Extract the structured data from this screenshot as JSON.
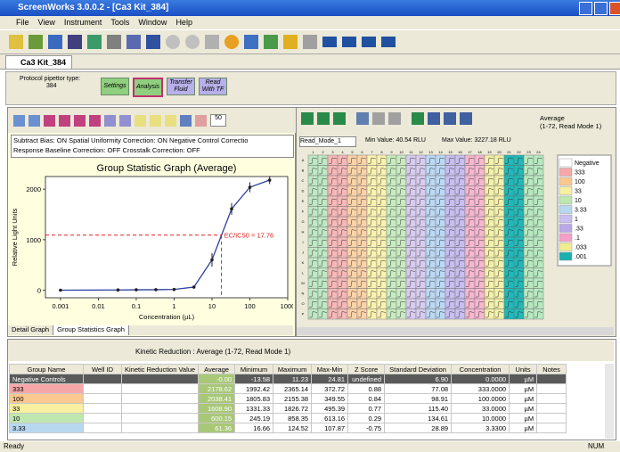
{
  "window": {
    "title": "ScreenWorks 3.0.0.2 - [Ca3 Kit_384]"
  },
  "menu": [
    "File",
    "View",
    "Instrument",
    "Tools",
    "Window",
    "Help"
  ],
  "document_tab": "Ca3 Kit_384",
  "protocol": {
    "label": "Protocol pipettor type:",
    "value": "384"
  },
  "steps": [
    "Settings",
    "Analysis",
    "Transfer Fluid",
    "Read With TF"
  ],
  "active_step": 1,
  "left_panel": {
    "zoom": "50",
    "corrections": [
      "Subtract Bias: ON  Spatial Uniformity Correction: ON  Negative Control Correctio",
      "Response Baseline Correction: OFF  Crosstalk Correction: OFF"
    ],
    "tabs": [
      "Detail Graph",
      "Group Statistics Graph"
    ]
  },
  "graph": {
    "type": "scatter",
    "title": "Group Statistic Graph (Average)",
    "x_label": "Concentration (µL)",
    "y_label": "Relative Light Units",
    "x": [
      0.001,
      0.033,
      0.1,
      0.33,
      1,
      3.33,
      10,
      33,
      100,
      333
    ],
    "values": [
      0,
      5,
      8,
      10,
      15,
      61,
      600,
      1609,
      2038,
      2179
    ],
    "errors": [
      5,
      5,
      5,
      6,
      8,
      29,
      135,
      115,
      99,
      77
    ],
    "log_x": true,
    "xlim": [
      0.0004,
      1000
    ],
    "ylim": [
      -150,
      2250
    ],
    "xticks": [
      0.001,
      0.01,
      0.1,
      1,
      10,
      100,
      1000
    ],
    "yticks": [
      0,
      1000,
      2000
    ],
    "color": "#2a3fa0",
    "ec50": {
      "x": 17.76,
      "y": 1090,
      "label": "EC/IC50 = 17.76",
      "color": "#e02020"
    }
  },
  "plate": {
    "mode": "Read_Mode_1",
    "min": "Min Value: 40.54 RLU",
    "max": "Max Value: 3227.18 RLU",
    "title": [
      "Average",
      "(1-72, Read Mode 1)"
    ],
    "columns": [
      "1",
      "2",
      "3",
      "4",
      "5",
      "6",
      "7",
      "8",
      "9",
      "10",
      "11",
      "12",
      "13",
      "14",
      "15",
      "16",
      "17",
      "18",
      "19",
      "20",
      "21",
      "22",
      "23",
      "24"
    ],
    "rows": [
      "A",
      "B",
      "C",
      "D",
      "E",
      "F",
      "G",
      "H",
      "I",
      "J",
      "K",
      "L",
      "M",
      "N",
      "O",
      "P"
    ],
    "column_colors": [
      "#bfe8c4",
      "#bfe8c4",
      "#f6b8b8",
      "#f6b8b8",
      "#fbd3a8",
      "#fbd3a8",
      "#faf2b0",
      "#faf2b0",
      "#c8ecc0",
      "#c8ecc0",
      "#d8ccf0",
      "#d8ccf0",
      "#bcd8f4",
      "#bcd8f4",
      "#c8bef0",
      "#c8bef0",
      "#f7b7cf",
      "#f7b7cf",
      "#f4f0a8",
      "#f4f0a8",
      "#22b8b8",
      "#22b8b8",
      "#b8e8c0",
      "#b8e8c0"
    ]
  },
  "legend": [
    {
      "name": "Negative",
      "color": "#ffffff"
    },
    {
      "name": "333",
      "color": "#f6a8a8"
    },
    {
      "name": "100",
      "color": "#fbc890"
    },
    {
      "name": "33",
      "color": "#f8f0a0"
    },
    {
      "name": "10",
      "color": "#bfe8b0"
    },
    {
      "name": "3.33",
      "color": "#b8d8f0"
    },
    {
      "name": "1",
      "color": "#c8bef0"
    },
    {
      "name": ".33",
      "color": "#b8a8e8"
    },
    {
      "name": ".1",
      "color": "#f4a0c8"
    },
    {
      "name": ".033",
      "color": "#f0ec90"
    },
    {
      "name": ".001",
      "color": "#18b0b0"
    }
  ],
  "table": {
    "title": "Kinetic Reduction : Average (1-72, Read Mode 1)",
    "headers": [
      "Group Name",
      "Well ID",
      "Kinetic Reduction Value",
      "Average",
      "Minimum",
      "Maximum",
      "Max-Min",
      "Z Score",
      "Standard Deviation",
      "Concentration",
      "Units",
      "Notes"
    ],
    "rows": [
      [
        "Negative Controls",
        "",
        "",
        "-0.00",
        "-13.58",
        "11.23",
        "24.81",
        "undefined",
        "6.90",
        "0.0000",
        "µM",
        ""
      ],
      [
        "333",
        "",
        "",
        "2178.62",
        "1992.42",
        "2365.14",
        "372.72",
        "0.88",
        "77.08",
        "333.0000",
        "µM",
        ""
      ],
      [
        "100",
        "",
        "",
        "2038.41",
        "1805.83",
        "2155.38",
        "349.55",
        "0.84",
        "98.91",
        "100.0000",
        "µM",
        ""
      ],
      [
        "33",
        "",
        "",
        "1608.90",
        "1331.33",
        "1826.72",
        "495.39",
        "0.77",
        "115.40",
        "33.0000",
        "µM",
        ""
      ],
      [
        "10",
        "",
        "",
        "600.15",
        "245.19",
        "858.35",
        "613.16",
        "0.29",
        "134.61",
        "10.0000",
        "µM",
        ""
      ],
      [
        "3.33",
        "",
        "",
        "61.36",
        "16.66",
        "124.52",
        "107.87",
        "-0.75",
        "28.89",
        "3.3300",
        "µM",
        ""
      ]
    ]
  },
  "status": {
    "left": "Ready",
    "right": "NUM"
  }
}
